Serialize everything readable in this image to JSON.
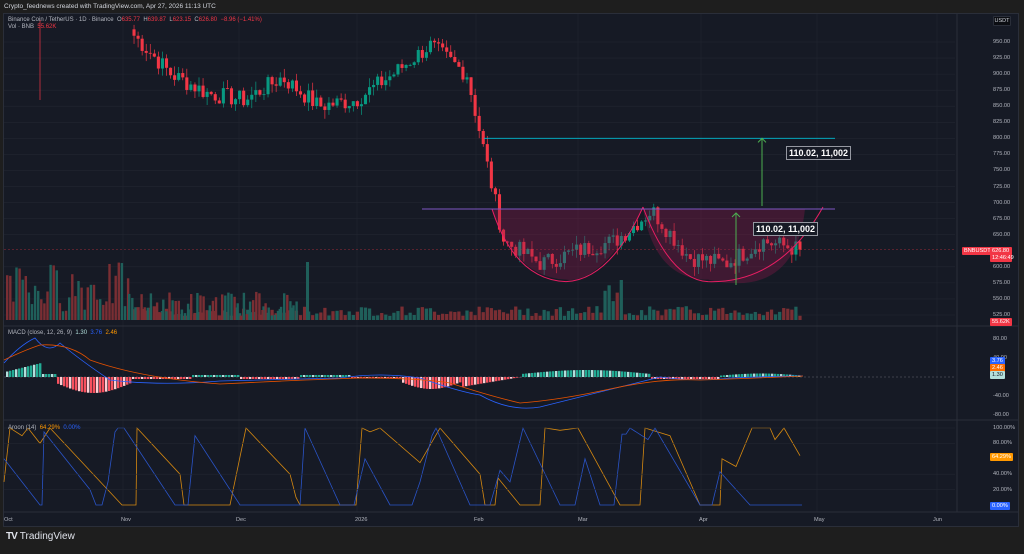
{
  "header": {
    "title": "Crypto_feednews created with TradingView.com, Apr 27, 2026 11:13 UTC"
  },
  "symbol_legend": {
    "name": "Binance Coin / TetherUS · 1D · Binance",
    "open_label": "O",
    "open": "635.77",
    "high_label": "H",
    "high": "639.87",
    "low_label": "L",
    "low": "623.15",
    "close_label": "C",
    "close": "626.80",
    "change": "−8.96 (−1.41%)"
  },
  "volume_legend": {
    "name": "Vol · BNB",
    "value": "55.62K"
  },
  "macd_legend": {
    "name": "MACD (close, 12, 26, 9)",
    "hist": "1.30",
    "macd": "3.76",
    "signal": "2.46"
  },
  "aroon_legend": {
    "name": "Aroon (14)",
    "up": "64.29%",
    "down": "0.00%"
  },
  "price_axis": {
    "currency": "USDT",
    "ticks": [
      "950.00",
      "925.00",
      "900.00",
      "875.00",
      "850.00",
      "825.00",
      "800.00",
      "775.00",
      "750.00",
      "725.00",
      "700.00",
      "675.00",
      "650.00",
      "600.00",
      "575.00",
      "550.00",
      "525.00"
    ],
    "symbol_tag": "BNBUSDT",
    "last_price": "626.80",
    "countdown": "12:46:49",
    "volume_tag": "55.62K"
  },
  "macd_axis": {
    "ticks": [
      "80.00",
      "40.00",
      "-40.00",
      "-80.00"
    ],
    "macd_tag": "3.76",
    "signal_tag": "2.46",
    "hist_tag": "1.30"
  },
  "aroon_axis": {
    "ticks": [
      "100.00%",
      "80.00%",
      "40.00%",
      "20.00%"
    ],
    "up_tag": "64.29%",
    "down_tag": "0.00%"
  },
  "time_axis": {
    "labels": [
      "Oct",
      "Nov",
      "Dec",
      "2026",
      "Feb",
      "Mar",
      "Apr",
      "May",
      "Jun"
    ]
  },
  "annotations": {
    "measure_upper": "110.02, 11,002",
    "measure_lower": "110.02, 11,002",
    "neckline_price": 690,
    "target_price": 800
  },
  "colors": {
    "up": "#089981",
    "down": "#f23645",
    "vol_up": "#22ab94",
    "vol_down": "#f7525f",
    "macd": "#2962ff",
    "signal": "#ff6d00",
    "aroon_up": "#ff9800",
    "aroon_down": "#2962ff",
    "pattern_fill": "#8c1a4a",
    "pattern_stroke": "#e91e63",
    "neckline": "#7e57c2",
    "target_line": "#00bcd4",
    "arrow": "#4caf50"
  },
  "branding": {
    "logo": "TV",
    "name": "TradingView"
  },
  "chart_data": {
    "type": "candlestick",
    "title": "Binance Coin / TetherUS · 1D · Binance",
    "xlabel": "",
    "ylabel": "USDT",
    "ylim": [
      515,
      965
    ],
    "x_ticks": [
      "Oct",
      "Nov",
      "Dec",
      "2026",
      "Feb",
      "Mar",
      "Apr",
      "May",
      "Jun"
    ],
    "y_ticks": [
      525,
      550,
      575,
      600,
      625,
      650,
      675,
      700,
      725,
      750,
      775,
      800,
      825,
      850,
      875,
      900,
      925,
      950
    ],
    "grid": true,
    "last": {
      "open": 635.77,
      "high": 639.87,
      "low": 623.15,
      "close": 626.8,
      "change": -8.96,
      "change_pct": -1.41,
      "volume": "55.62K"
    },
    "price_path_approx": [
      {
        "date": "Late Oct",
        "close": 960
      },
      {
        "date": "Early Nov",
        "close": 900
      },
      {
        "date": "Mid Nov",
        "close": 870
      },
      {
        "date": "Late Nov",
        "close": 860
      },
      {
        "date": "Early Dec",
        "close": 895
      },
      {
        "date": "Mid Dec",
        "close": 850
      },
      {
        "date": "Late Dec",
        "close": 860
      },
      {
        "date": "Early Jan",
        "close": 900
      },
      {
        "date": "Mid Jan",
        "close": 945
      },
      {
        "date": "Late Jan",
        "close": 900
      },
      {
        "date": "Early Feb",
        "close": 640
      },
      {
        "date": "Mid Feb",
        "close": 605
      },
      {
        "date": "Late Feb",
        "close": 625
      },
      {
        "date": "Early Mar",
        "close": 640
      },
      {
        "date": "Mid Mar",
        "close": 688
      },
      {
        "date": "Late Mar",
        "close": 615
      },
      {
        "date": "Early Apr",
        "close": 605
      },
      {
        "date": "Mid Apr",
        "close": 640
      },
      {
        "date": "Late Apr",
        "close": 626.8
      }
    ],
    "pattern": {
      "name": "Double bottom / cup",
      "neckline": 690,
      "bottom_1": 580,
      "bottom_2": 580,
      "measured_move": 110.02,
      "target": 800
    },
    "indicators": {
      "macd": {
        "params": [
          12,
          26,
          9
        ],
        "hist": 1.3,
        "macd": 3.76,
        "signal": 2.46,
        "ylim": [
          -90,
          90
        ]
      },
      "aroon": {
        "length": 14,
        "up": 64.29,
        "down": 0.0,
        "ylim": [
          0,
          100
        ]
      }
    }
  }
}
